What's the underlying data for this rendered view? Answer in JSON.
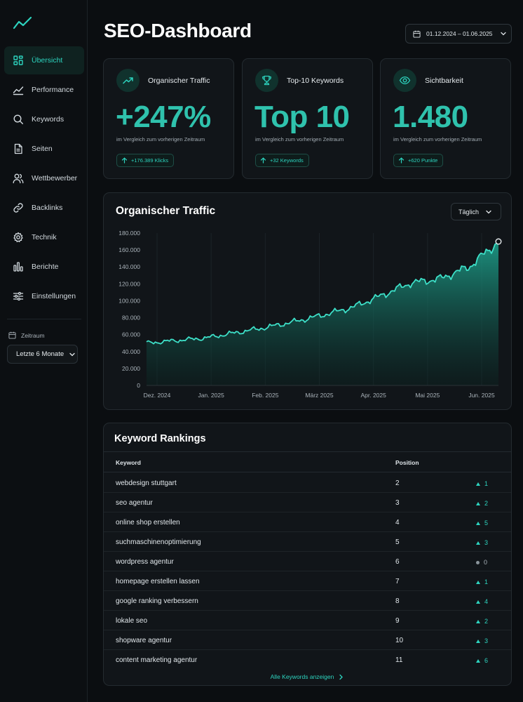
{
  "colors": {
    "accent": "#2dd4bf",
    "background": "#0b0e11",
    "card": "#111519"
  },
  "sidebar": {
    "items": [
      {
        "label": "Übersicht",
        "icon": "grid-icon",
        "active": true
      },
      {
        "label": "Performance",
        "icon": "trend-line-icon"
      },
      {
        "label": "Keywords",
        "icon": "search-icon"
      },
      {
        "label": "Seiten",
        "icon": "document-icon"
      },
      {
        "label": "Wettbewerber",
        "icon": "users-icon"
      },
      {
        "label": "Backlinks",
        "icon": "link-icon"
      },
      {
        "label": "Technik",
        "icon": "gear-icon"
      },
      {
        "label": "Berichte",
        "icon": "bar-chart-icon"
      },
      {
        "label": "Einstellungen",
        "icon": "sliders-icon"
      }
    ],
    "period_label": "Zeitraum",
    "period_value": "Letzte 6 Monate"
  },
  "header": {
    "title": "SEO-Dashboard",
    "date_range": "01.12.2024 – 01.06.2025"
  },
  "kpis": [
    {
      "title": "Organischer Traffic",
      "icon": "trend-up-icon",
      "value": "+247%",
      "subtitle": "im Vergleich zum vorherigen Zeitraum",
      "badge": "+176.389 Klicks"
    },
    {
      "title": "Top-10 Keywords",
      "icon": "trophy-icon",
      "value": "Top 10",
      "subtitle": "im Vergleich zum vorherigen Zeitraum",
      "badge": "+32 Keywords"
    },
    {
      "title": "Sichtbarkeit",
      "icon": "eye-icon",
      "value": "1.480",
      "subtitle": "im Vergleich zum vorherigen Zeitraum",
      "badge": "+620 Punkte"
    }
  ],
  "traffic_chart": {
    "title": "Organischer Traffic",
    "granularity": "Täglich"
  },
  "chart_data": {
    "type": "area",
    "title": "Organischer Traffic",
    "xlabel": "",
    "ylabel": "",
    "x_tick_labels": [
      "Dez. 2024",
      "Jan. 2025",
      "Feb. 2025",
      "März 2025",
      "Apr. 2025",
      "Mai 2025",
      "Jun. 2025"
    ],
    "y_tick_labels": [
      "0",
      "20.000",
      "40.000",
      "60.000",
      "80.000",
      "100.000",
      "120.000",
      "140.000",
      "160.000",
      "180.000"
    ],
    "ylim": [
      0,
      180000
    ],
    "grid": "vertical",
    "series": [
      {
        "x": [
          "2024-12-01",
          "2024-12-15",
          "2025-01-01",
          "2025-01-15",
          "2025-02-01",
          "2025-02-15",
          "2025-03-01",
          "2025-03-15",
          "2025-04-01",
          "2025-04-15",
          "2025-05-01",
          "2025-05-15",
          "2025-06-01"
        ],
        "values": [
          50000,
          53000,
          56000,
          62000,
          68000,
          75000,
          83000,
          92000,
          106000,
          121000,
          126000,
          140000,
          170000
        ]
      }
    ]
  },
  "keywords": {
    "title": "Keyword Rankings",
    "col_keyword": "Keyword",
    "col_position": "Position",
    "rows": [
      {
        "keyword": "webdesign stuttgart",
        "position": "2",
        "change": "1",
        "trend": "up"
      },
      {
        "keyword": "seo agentur",
        "position": "3",
        "change": "2",
        "trend": "up"
      },
      {
        "keyword": "online shop erstellen",
        "position": "4",
        "change": "5",
        "trend": "up"
      },
      {
        "keyword": "suchmaschinenoptimierung",
        "position": "5",
        "change": "3",
        "trend": "up"
      },
      {
        "keyword": "wordpress agentur",
        "position": "6",
        "change": "0",
        "trend": "neutral"
      },
      {
        "keyword": "homepage erstellen lassen",
        "position": "7",
        "change": "1",
        "trend": "up"
      },
      {
        "keyword": "google ranking verbessern",
        "position": "8",
        "change": "4",
        "trend": "up"
      },
      {
        "keyword": "lokale seo",
        "position": "9",
        "change": "2",
        "trend": "up"
      },
      {
        "keyword": "shopware agentur",
        "position": "10",
        "change": "3",
        "trend": "up"
      },
      {
        "keyword": "content marketing agentur",
        "position": "11",
        "change": "6",
        "trend": "up"
      }
    ],
    "show_all": "Alle Keywords anzeigen"
  }
}
